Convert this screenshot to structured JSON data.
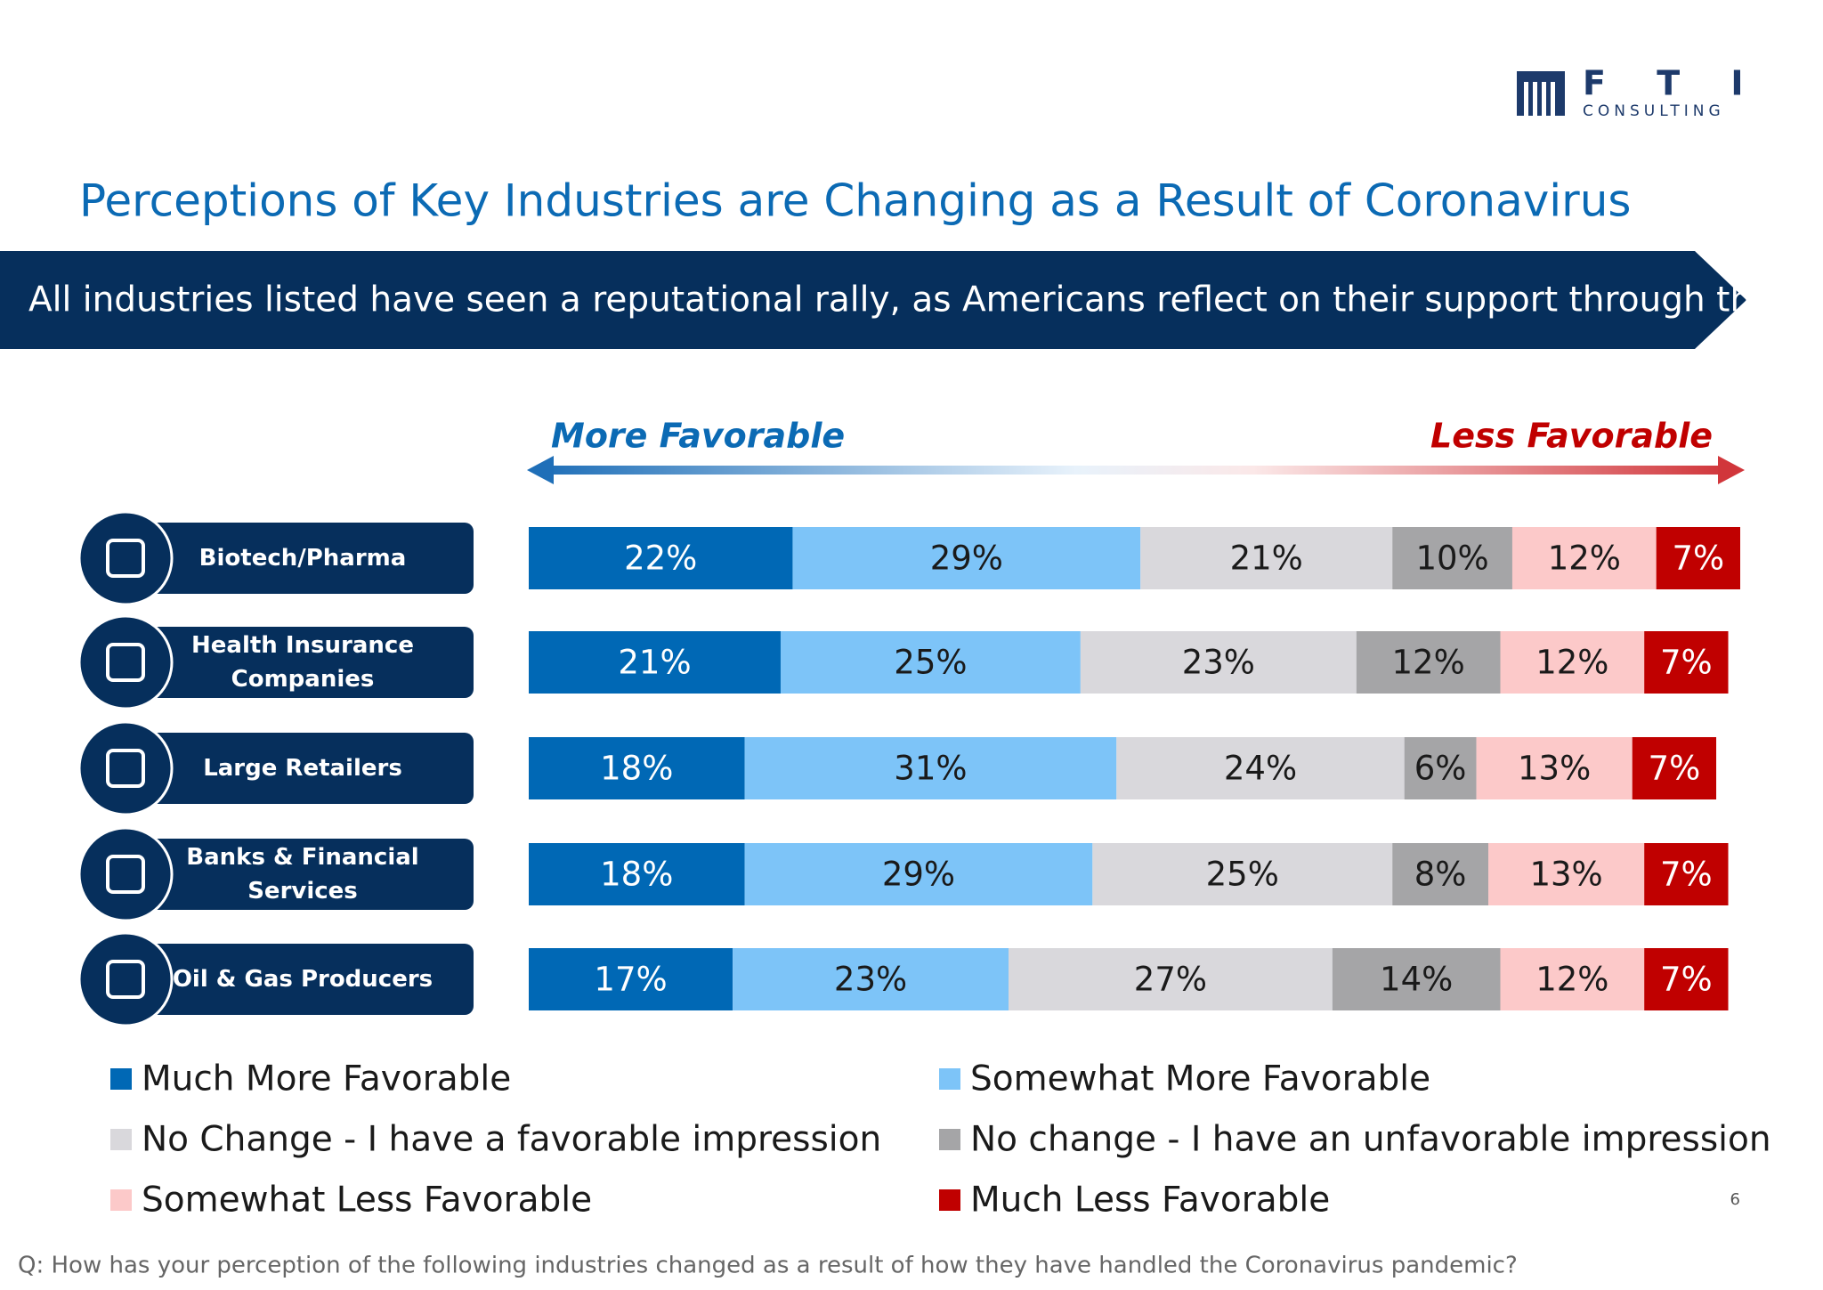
{
  "logo": {
    "name": "F T I",
    "tagline": "CONSULTING"
  },
  "page_number": "6",
  "footnote": "Q: How has your perception of the following industries changed as a result of how they have handled the Coronavirus pandemic?",
  "chart_data": {
    "type": "stacked-bar-horizontal",
    "title": "Perceptions of Key Industries are Changing as a Result of Coronavirus",
    "subtitle": "All industries listed have seen a reputational rally, as Americans reflect on their support through the crisis",
    "annotations": {
      "left": "More Favorable",
      "right": "Less Favorable"
    },
    "categories": [
      "Biotech/Pharma",
      "Health Insurance Companies",
      "Large Retailers",
      "Banks & Financial Services",
      "Oil & Gas Producers"
    ],
    "xlim": [
      0,
      101
    ],
    "series": [
      {
        "name": "Much More Favorable",
        "color": "#0068b5",
        "values": [
          22,
          21,
          18,
          18,
          17
        ],
        "value_labels": [
          "22%",
          "21%",
          "18%",
          "18%",
          "17%"
        ]
      },
      {
        "name": "Somewhat More Favorable",
        "color": "#7dc4f8",
        "values": [
          29,
          25,
          31,
          29,
          23
        ],
        "value_labels": [
          "29%",
          "25%",
          "31%",
          "29%",
          "23%"
        ]
      },
      {
        "name": "No Change - I have a favorable impression",
        "color": "#d9d8dc",
        "values": [
          21,
          23,
          24,
          25,
          27
        ],
        "value_labels": [
          "21%",
          "23%",
          "24%",
          "25%",
          "27%"
        ]
      },
      {
        "name": "No change - I have an unfavorable impression",
        "color": "#a5a5a7",
        "values": [
          10,
          12,
          6,
          8,
          14
        ],
        "value_labels": [
          "10%",
          "12%",
          "6%",
          "8%",
          "14%"
        ]
      },
      {
        "name": "Somewhat Less Favorable",
        "color": "#fcc9c9",
        "values": [
          12,
          12,
          13,
          13,
          12
        ],
        "value_labels": [
          "12%",
          "12%",
          "13%",
          "13%",
          "12%"
        ]
      },
      {
        "name": "Much Less Favorable",
        "color": "#c00000",
        "values": [
          7,
          7,
          7,
          7,
          7
        ],
        "value_labels": [
          "7%",
          "7%",
          "7%",
          "7%",
          "7%"
        ]
      }
    ]
  }
}
